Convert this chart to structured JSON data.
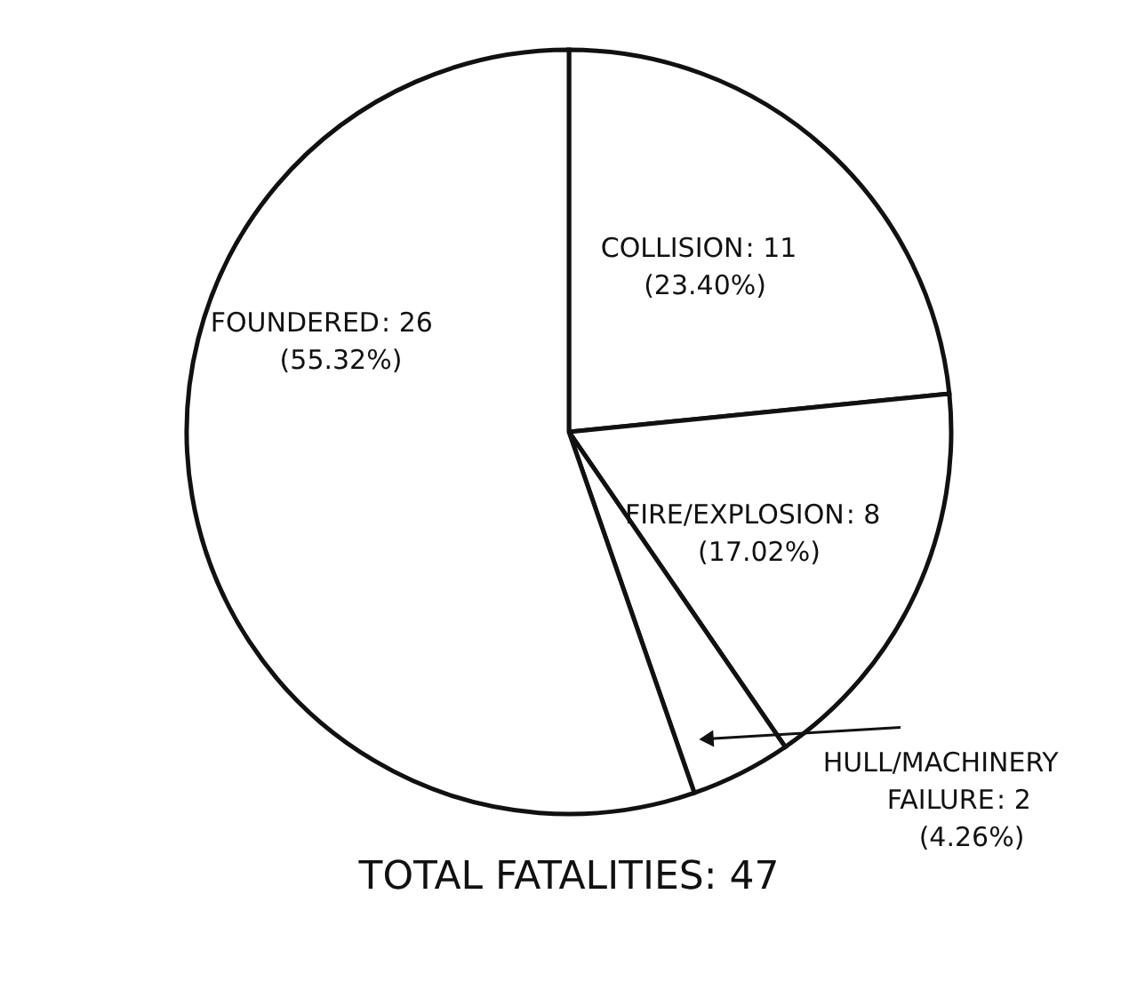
{
  "chart_data": {
    "type": "pie",
    "title": "TOTAL FATALITIES: 47",
    "categories": [
      "COLLISION",
      "FIRE/EXPLOSION",
      "HULL/MACHINERY FAILURE",
      "FOUNDERED"
    ],
    "values": [
      11,
      8,
      2,
      26
    ],
    "colors": [
      "#ffffff",
      "#ffffff",
      "#ffffff",
      "#ffffff"
    ],
    "value_labels": [
      ": 11",
      ": 8",
      ": 2",
      ": 26"
    ],
    "annotations": [
      "(23.40%)",
      "(17.02%)",
      "(4.26%)",
      "(55.32%)"
    ],
    "legend": false
  }
}
